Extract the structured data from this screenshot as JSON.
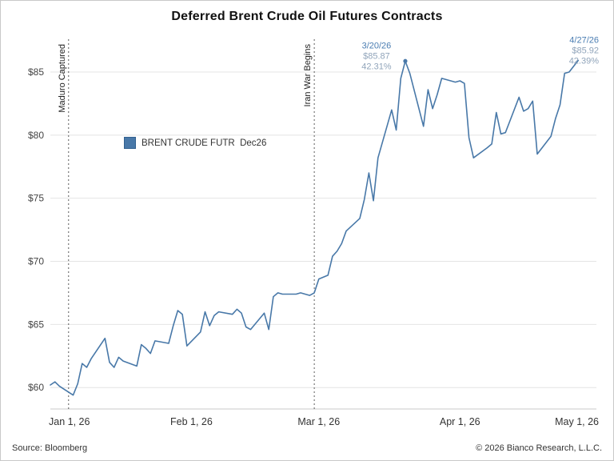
{
  "chart_data": {
    "type": "line",
    "title": "Deferred Brent Crude Oil Futures Contracts",
    "legend": {
      "label": "BRENT CRUDE FUTR  Dec26",
      "position": "inside-upper-left"
    },
    "grid": "horizontal",
    "series": [
      {
        "name": "BRENT CRUDE FUTR Dec26",
        "color": "#4878a8",
        "points": [
          [
            0,
            60.2
          ],
          [
            1,
            60.45
          ],
          [
            2,
            60.1
          ],
          [
            5,
            59.4
          ],
          [
            6,
            60.3
          ],
          [
            7,
            61.9
          ],
          [
            8,
            61.6
          ],
          [
            9,
            62.3
          ],
          [
            12,
            63.9
          ],
          [
            13,
            62.0
          ],
          [
            14,
            61.6
          ],
          [
            15,
            62.4
          ],
          [
            16,
            62.1
          ],
          [
            19,
            61.7
          ],
          [
            20,
            63.4
          ],
          [
            21,
            63.1
          ],
          [
            22,
            62.7
          ],
          [
            23,
            63.7
          ],
          [
            26,
            63.5
          ],
          [
            27,
            64.9
          ],
          [
            28,
            66.1
          ],
          [
            29,
            65.8
          ],
          [
            30,
            63.3
          ],
          [
            33,
            64.4
          ],
          [
            34,
            66.0
          ],
          [
            35,
            64.9
          ],
          [
            36,
            65.7
          ],
          [
            37,
            66.0
          ],
          [
            40,
            65.8
          ],
          [
            41,
            66.2
          ],
          [
            42,
            65.9
          ],
          [
            43,
            64.8
          ],
          [
            44,
            64.6
          ],
          [
            47,
            65.9
          ],
          [
            48,
            64.6
          ],
          [
            49,
            67.2
          ],
          [
            50,
            67.5
          ],
          [
            51,
            67.4
          ],
          [
            54,
            67.4
          ],
          [
            55,
            67.5
          ],
          [
            56,
            67.4
          ],
          [
            57,
            67.3
          ],
          [
            58,
            67.5
          ],
          [
            59,
            68.6
          ],
          [
            61,
            68.9
          ],
          [
            62,
            70.4
          ],
          [
            63,
            70.8
          ],
          [
            64,
            71.4
          ],
          [
            65,
            72.4
          ],
          [
            68,
            73.4
          ],
          [
            69,
            74.9
          ],
          [
            70,
            77.0
          ],
          [
            71,
            74.8
          ],
          [
            72,
            78.2
          ],
          [
            75,
            82.0
          ],
          [
            76,
            80.4
          ],
          [
            77,
            84.5
          ],
          [
            78,
            85.87
          ],
          [
            79,
            84.9
          ],
          [
            82,
            80.7
          ],
          [
            83,
            83.6
          ],
          [
            84,
            82.1
          ],
          [
            85,
            83.2
          ],
          [
            86,
            84.5
          ],
          [
            89,
            84.2
          ],
          [
            90,
            84.3
          ],
          [
            91,
            84.1
          ],
          [
            92,
            79.8
          ],
          [
            93,
            78.2
          ],
          [
            96,
            79.0
          ],
          [
            97,
            79.3
          ],
          [
            98,
            81.8
          ],
          [
            99,
            80.1
          ],
          [
            100,
            80.2
          ],
          [
            103,
            83.0
          ],
          [
            104,
            81.9
          ],
          [
            105,
            82.1
          ],
          [
            106,
            82.7
          ],
          [
            107,
            78.5
          ],
          [
            110,
            79.9
          ],
          [
            111,
            81.3
          ],
          [
            112,
            82.4
          ],
          [
            113,
            84.9
          ],
          [
            114,
            85.0
          ],
          [
            116,
            85.92
          ]
        ]
      }
    ],
    "x_axis": {
      "unit": "days since Jan 1, 2026",
      "range": [
        0,
        120
      ],
      "ticks": [
        {
          "day": 0,
          "label": "Jan 1, 26"
        },
        {
          "day": 31,
          "label": "Feb 1, 26"
        },
        {
          "day": 59,
          "label": "Mar 1, 26"
        },
        {
          "day": 90,
          "label": "Apr 1, 26"
        },
        {
          "day": 120,
          "label": "May 1, 26"
        }
      ]
    },
    "y_axis": {
      "range": [
        58.3,
        87.6
      ],
      "ticks": [
        {
          "value": 60,
          "label": "$60"
        },
        {
          "value": 65,
          "label": "$65"
        },
        {
          "value": 70,
          "label": "$70"
        },
        {
          "value": 75,
          "label": "$75"
        },
        {
          "value": 80,
          "label": "$80"
        },
        {
          "value": 85,
          "label": "$85"
        }
      ]
    },
    "event_lines": [
      {
        "day": 4,
        "label": "Maduro Captured"
      },
      {
        "day": 58,
        "label": "Iran War Begins"
      }
    ],
    "annotations": [
      {
        "day": 78,
        "value": 85.87,
        "lines": [
          "3/20/26",
          "$85.87",
          "42.31%"
        ],
        "marker": true,
        "align": "left-of-point"
      },
      {
        "day": 116,
        "value": 85.92,
        "lines": [
          "4/27/26",
          "$85.92",
          "42.39%"
        ],
        "marker": false,
        "align": "top-right"
      }
    ]
  },
  "footer": {
    "source": "Source: Bloomberg",
    "copyright": "© 2026 Bianco Research, L.L.C."
  }
}
